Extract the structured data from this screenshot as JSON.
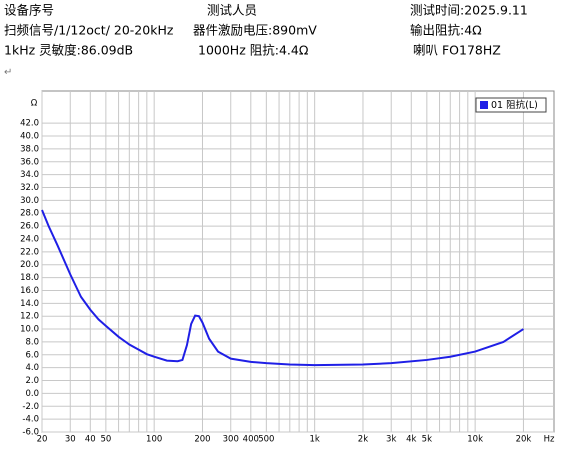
{
  "header": {
    "rows": [
      [
        "设备序号",
        "测试人员",
        "测试时间:2025.9.11"
      ],
      [
        "扫频信号/1/12oct/ 20-20kHz",
        "器件激励电压:890mV",
        "输出阻抗:4Ω"
      ],
      [
        "1kHz 灵敏度:86.09dB",
        "1000Hz 阻抗:4.4Ω",
        "喇叭 FO178HZ"
      ]
    ],
    "marker": "↵"
  },
  "chart_data": {
    "type": "line",
    "y_unit": "Ω",
    "x_unit": "Hz",
    "x_log": true,
    "grid": true,
    "legend": "upper right",
    "xlim": [
      20,
      31000
    ],
    "ylim": [
      -6,
      47
    ],
    "xticks": [
      20,
      30,
      40,
      50,
      100,
      200,
      300,
      400,
      500,
      {
        "value": 1000,
        "label": "1k"
      },
      {
        "value": 2000,
        "label": "2k"
      },
      {
        "value": 3000,
        "label": "3k"
      },
      {
        "value": 4000,
        "label": "4k"
      },
      {
        "value": 5000,
        "label": "5k"
      },
      {
        "value": 10000,
        "label": "10k"
      },
      {
        "value": 20000,
        "label": "20k"
      }
    ],
    "x_minor_ticks": [
      60,
      70,
      80,
      90,
      600,
      700,
      800,
      900,
      6000,
      7000,
      8000,
      9000
    ],
    "yticks": [
      {
        "value": -6,
        "label": "-6.0"
      },
      {
        "value": -4,
        "label": "-4.0"
      },
      {
        "value": -2,
        "label": "-2.0"
      },
      {
        "value": 0,
        "label": "0.0"
      },
      {
        "value": 2,
        "label": "2.0"
      },
      {
        "value": 4,
        "label": "4.0"
      },
      {
        "value": 6,
        "label": "6.0"
      },
      {
        "value": 8,
        "label": "8.0"
      },
      {
        "value": 10,
        "label": "10.0"
      },
      {
        "value": 12,
        "label": "12.0"
      },
      {
        "value": 14,
        "label": "14.0"
      },
      {
        "value": 16,
        "label": "16.0"
      },
      {
        "value": 18,
        "label": "18.0"
      },
      {
        "value": 20,
        "label": "20.0"
      },
      {
        "value": 22,
        "label": "22.0"
      },
      {
        "value": 24,
        "label": "24.0"
      },
      {
        "value": 26,
        "label": "26.0"
      },
      {
        "value": 28,
        "label": "28.0"
      },
      {
        "value": 30,
        "label": "30.0"
      },
      {
        "value": 32,
        "label": "32.0"
      },
      {
        "value": 34,
        "label": "34.0"
      },
      {
        "value": 36,
        "label": "36.0"
      },
      {
        "value": 38,
        "label": "38.0"
      },
      {
        "value": 40,
        "label": "40.0"
      },
      {
        "value": 42,
        "label": "42.0"
      }
    ],
    "x": [
      20,
      22,
      25,
      30,
      35,
      40,
      45,
      50,
      60,
      70,
      80,
      90,
      100,
      120,
      140,
      150,
      160,
      170,
      180,
      190,
      200,
      220,
      250,
      300,
      400,
      500,
      700,
      1000,
      2000,
      3000,
      5000,
      7000,
      10000,
      15000,
      20000
    ],
    "series": [
      {
        "name": "01 阻抗(L)",
        "color": "#1f1fe6",
        "values": [
          28.5,
          26,
          23,
          18.5,
          15,
          13,
          11.5,
          10.5,
          8.8,
          7.6,
          6.8,
          6.1,
          5.7,
          5.1,
          5.0,
          5.2,
          7.5,
          10.8,
          12.1,
          12.0,
          11.0,
          8.5,
          6.5,
          5.4,
          4.9,
          4.7,
          4.5,
          4.4,
          4.5,
          4.7,
          5.2,
          5.7,
          6.5,
          8.0,
          10.0
        ]
      }
    ]
  }
}
